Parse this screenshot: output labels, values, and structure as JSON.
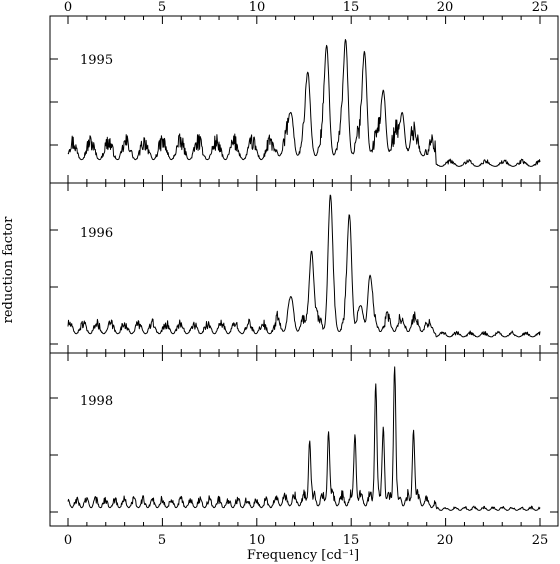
{
  "chart_data": {
    "type": "line",
    "xlabel": "Frequency [cd⁻¹]",
    "ylabel": "reduction factor",
    "xlim": [
      0,
      25
    ],
    "x_ticks": [
      "0",
      "5",
      "10",
      "15",
      "20",
      "25"
    ],
    "grid": false,
    "panels": [
      {
        "label": "1995",
        "ylim": [
          0,
          1
        ],
        "peaks": [
          {
            "x": 11.8,
            "y": 0.38
          },
          {
            "x": 12.7,
            "y": 0.65
          },
          {
            "x": 13.7,
            "y": 0.83
          },
          {
            "x": 14.7,
            "y": 0.87
          },
          {
            "x": 15.7,
            "y": 0.79
          },
          {
            "x": 16.7,
            "y": 0.53
          },
          {
            "x": 17.7,
            "y": 0.38
          }
        ],
        "noise_level_low": 0.18,
        "noise_level_high": 0.05
      },
      {
        "label": "1996",
        "ylim": [
          0,
          1
        ],
        "peaks": [
          {
            "x": 11.8,
            "y": 0.28
          },
          {
            "x": 12.9,
            "y": 0.58
          },
          {
            "x": 13.9,
            "y": 0.95
          },
          {
            "x": 14.9,
            "y": 0.82
          },
          {
            "x": 16.0,
            "y": 0.42
          },
          {
            "x": 15.5,
            "y": 0.22
          }
        ],
        "noise_level_low": 0.1,
        "noise_level_high": 0.04
      },
      {
        "label": "1998",
        "ylim": [
          0,
          1
        ],
        "peaks": [
          {
            "x": 12.8,
            "y": 0.46
          },
          {
            "x": 13.8,
            "y": 0.52
          },
          {
            "x": 15.2,
            "y": 0.5
          },
          {
            "x": 16.3,
            "y": 0.83
          },
          {
            "x": 16.7,
            "y": 0.55
          },
          {
            "x": 17.3,
            "y": 0.94
          },
          {
            "x": 18.3,
            "y": 0.53
          }
        ],
        "noise_level_low": 0.08,
        "noise_level_high": 0.03
      }
    ]
  }
}
